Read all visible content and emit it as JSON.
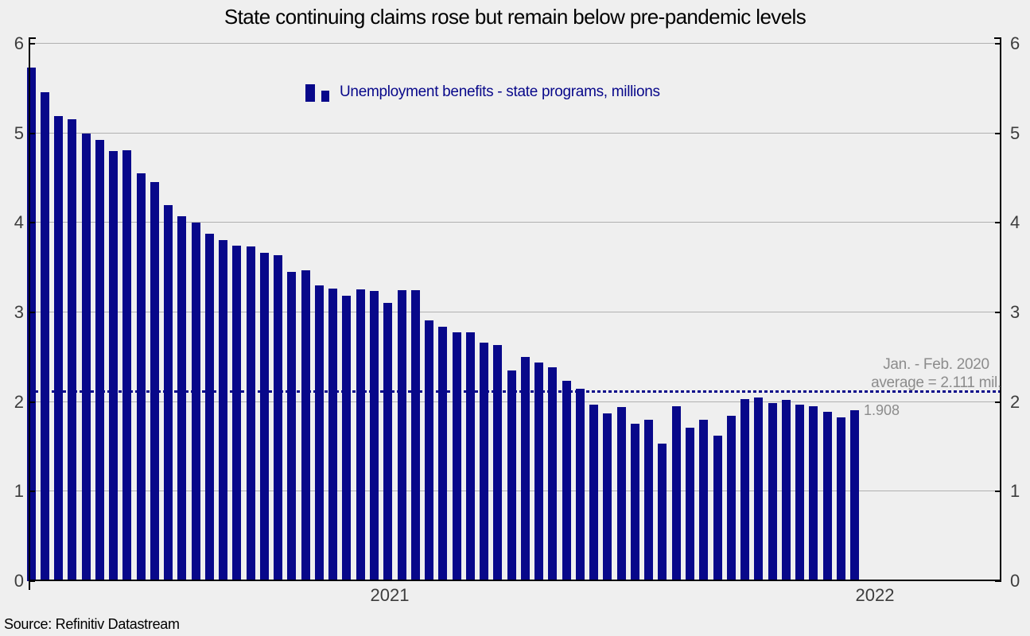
{
  "title": "State continuing claims rose but remain below pre-pandemic levels",
  "legend": {
    "label": "Unemployment benefits - state programs, millions"
  },
  "annotation": {
    "line1": "Jan. - Feb. 2020",
    "line2": "average = 2.111 mil."
  },
  "last_value_label": "1.908",
  "source": "Source: Refinitiv Datastream",
  "colors": {
    "bar": "#08088a",
    "background": "#efefef",
    "gridline": "#b0b0b0",
    "axis": "#000000",
    "tick_label": "#3d3d3d",
    "annotation_text": "#8c8c8c"
  },
  "chart_data": {
    "type": "bar",
    "title": "State continuing claims rose but remain below pre-pandemic levels",
    "series_name": "Unemployment benefits - state programs, millions",
    "unit": "millions",
    "values": [
      5.73,
      5.46,
      5.19,
      5.16,
      5.0,
      4.93,
      4.8,
      4.81,
      4.55,
      4.46,
      4.2,
      4.07,
      4.0,
      3.88,
      3.81,
      3.75,
      3.74,
      3.67,
      3.64,
      3.45,
      3.47,
      3.3,
      3.27,
      3.19,
      3.26,
      3.24,
      3.11,
      3.25,
      3.25,
      2.91,
      2.84,
      2.78,
      2.78,
      2.66,
      2.64,
      2.35,
      2.5,
      2.44,
      2.39,
      2.24,
      2.15,
      1.97,
      1.87,
      1.94,
      1.76,
      1.8,
      1.54,
      1.95,
      1.71,
      1.8,
      1.62,
      1.85,
      2.03,
      2.05,
      1.99,
      2.02,
      1.97,
      1.95,
      1.89,
      1.83,
      1.908
    ],
    "x_tick_labels": [
      "2021",
      "2022"
    ],
    "y_ticks": [
      0,
      1,
      2,
      3,
      4,
      5,
      6
    ],
    "ylim": [
      0,
      6
    ],
    "grid": true,
    "legend_position": "top-center",
    "reference_line": {
      "value": 2.111,
      "style": "dotted",
      "label": "Jan. - Feb. 2020 average = 2.111 mil."
    },
    "last_point_label": {
      "value": 1.908,
      "text": "1.908"
    }
  }
}
